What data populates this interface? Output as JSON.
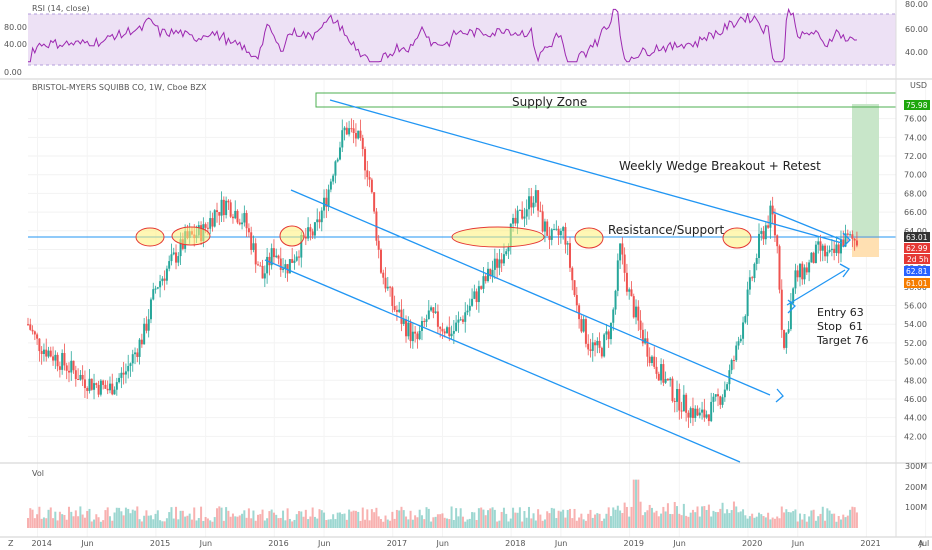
{
  "chart_data": [
    {
      "type": "line",
      "pane": "rsi",
      "title": "RSI (14, close)",
      "ylim": [
        0,
        100
      ],
      "y_ticks": [
        "80.00",
        "40.00",
        "0.00"
      ],
      "y_ticks_right": [
        "80.00",
        "60.00",
        "40.00"
      ],
      "band": [
        30,
        70
      ],
      "color": "#9c27b0"
    },
    {
      "type": "candlestick",
      "pane": "price",
      "title": "BRISTOL-MYERS SQUIBB CO, 1W, Cboe BZX",
      "currency": "USD",
      "ylim": [
        40,
        78
      ],
      "y_ticks": [
        "76.00",
        "74.00",
        "72.00",
        "70.00",
        "68.00",
        "66.00",
        "64.00",
        "62.00",
        "60.00",
        "58.00",
        "56.00",
        "54.00",
        "52.00",
        "50.00",
        "48.00",
        "46.00",
        "44.00",
        "42.00"
      ],
      "price_badges": [
        {
          "label": "75.98",
          "color": "#1ea70d"
        },
        {
          "label": "63.01",
          "color": "#333333"
        },
        {
          "label": "62.99",
          "color": "#e53935"
        },
        {
          "label": "2d 5h",
          "color": "#e53935"
        },
        {
          "label": "62.81",
          "color": "#2962ff"
        },
        {
          "label": "61.01",
          "color": "#f57c00"
        }
      ],
      "x_ticks": [
        "2014",
        "Jun",
        "2015",
        "Jun",
        "2016",
        "Jun",
        "2017",
        "Jun",
        "2018",
        "Jun",
        "2019",
        "Jun",
        "2020",
        "Jun",
        "2021",
        "Jul"
      ],
      "series": [
        {
          "name": "weekly_close_approx",
          "x": [
            2013.92,
            2014.0,
            2014.2,
            2014.4,
            2014.6,
            2014.75,
            2014.9,
            2015.0,
            2015.1,
            2015.25,
            2015.4,
            2015.5,
            2015.6,
            2015.75,
            2015.9,
            2016.0,
            2016.1,
            2016.25,
            2016.35,
            2016.45,
            2016.52,
            2016.6,
            2016.7,
            2016.8,
            2016.9,
            2017.0,
            2017.1,
            2017.2,
            2017.3,
            2017.4,
            2017.5,
            2017.6,
            2017.75,
            2017.9,
            2018.0,
            2018.1,
            2018.2,
            2018.25,
            2018.35,
            2018.45,
            2018.55,
            2018.65,
            2018.75,
            2018.85,
            2018.92,
            2019.0,
            2019.1,
            2019.2,
            2019.3,
            2019.4,
            2019.5,
            2019.6,
            2019.7,
            2019.8,
            2019.9,
            2020.0,
            2020.1,
            2020.2,
            2020.25,
            2020.3,
            2020.4,
            2020.5,
            2020.6,
            2020.7,
            2020.8,
            2020.9
          ],
          "values": [
            54,
            52,
            50,
            48,
            47,
            49,
            53,
            58,
            60,
            63,
            64,
            66,
            67,
            65,
            59,
            62,
            60,
            63,
            64,
            68,
            72,
            75,
            74,
            70,
            60,
            56,
            54,
            52,
            55,
            54,
            53,
            55,
            58,
            61,
            64,
            66,
            68,
            65,
            63,
            64,
            56,
            52,
            51,
            54,
            62,
            57,
            53,
            50,
            48,
            46,
            45,
            44,
            45,
            47,
            51,
            57,
            63,
            66,
            62,
            51,
            59,
            60,
            62,
            61,
            63,
            63.01
          ]
        }
      ],
      "annotations": [
        {
          "text": "Supply Zone"
        },
        {
          "text": "Weekly Wedge Breakout + Retest"
        },
        {
          "text": "Resistance/Support"
        },
        {
          "text": "Entry 63"
        },
        {
          "text": "Stop  61"
        },
        {
          "text": "Target 76"
        }
      ],
      "key_levels": {
        "supply_zone": [
          75.98,
          77
        ],
        "resistance_support": 63.01,
        "entry": 63,
        "stop": 61,
        "target": 76
      }
    },
    {
      "type": "bar",
      "pane": "volume",
      "title": "Vol",
      "y_ticks": [
        "300M",
        "200M",
        "100M"
      ]
    }
  ],
  "colors": {
    "up": "#26a69a",
    "down": "#ef5350",
    "rsi": "#9c27b0",
    "rsi_band": "#ede1f5",
    "trend": "#2196f3",
    "supply": "#4caf50",
    "ellipse_fill": "#fff176",
    "ellipse_stroke": "#e53935",
    "target_box": "#c8e6c9",
    "stop_box": "#ffe0b2"
  },
  "toolbar": {
    "z_label": "Z",
    "a_label": "A"
  }
}
